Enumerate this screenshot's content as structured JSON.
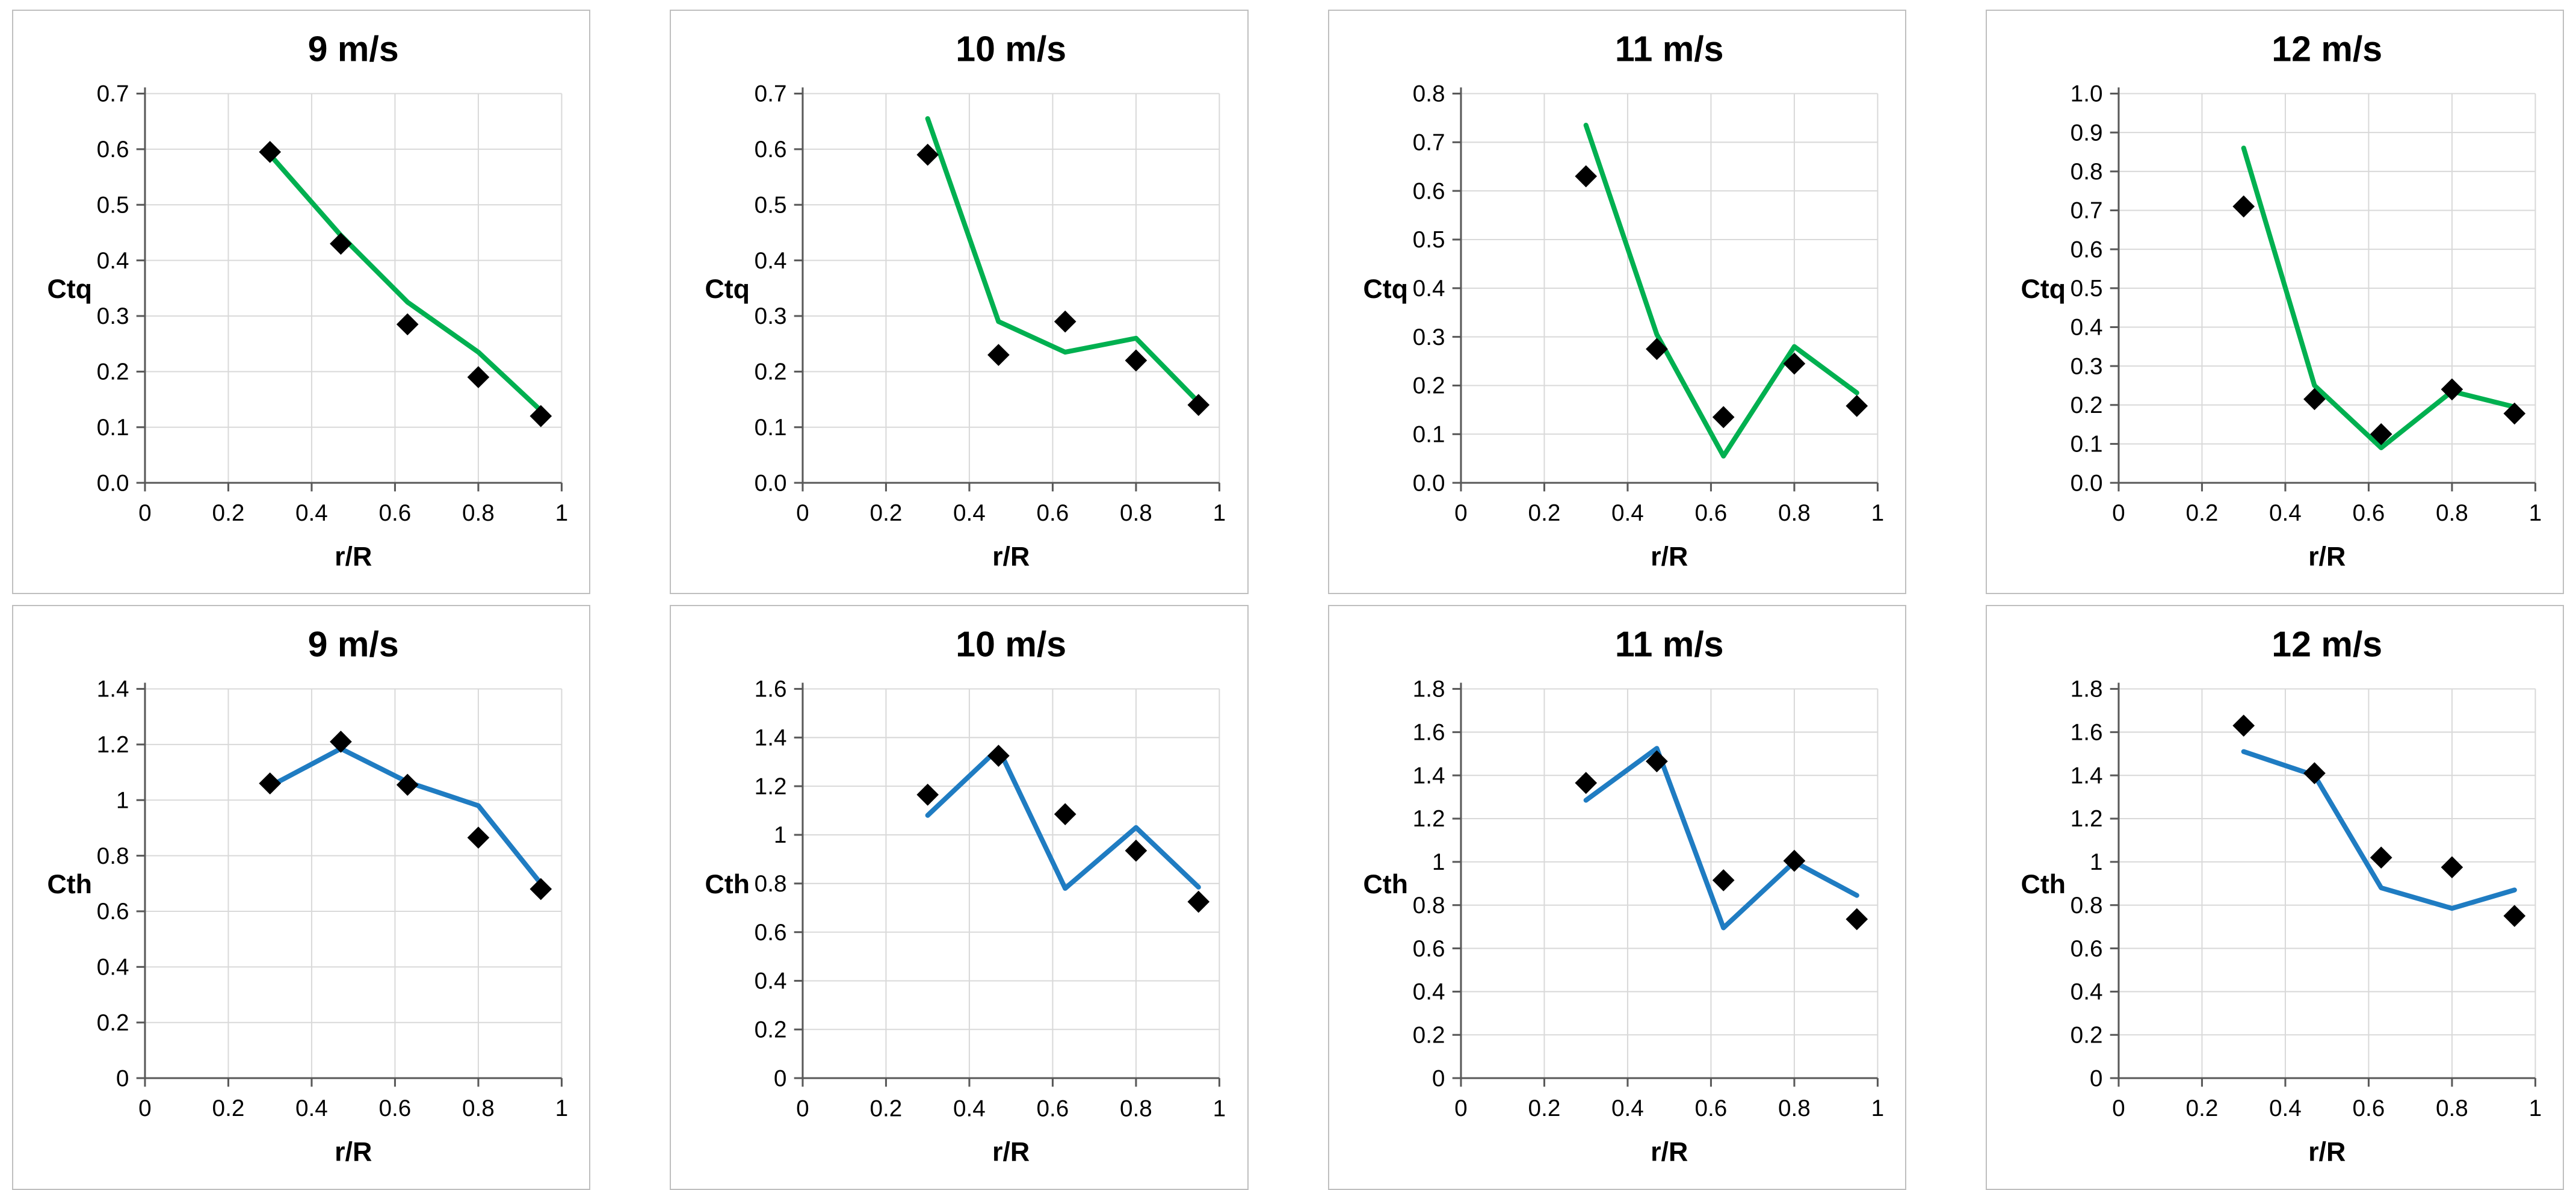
{
  "page": {
    "background": "#FFFFFF",
    "description_colors": {
      "ctq_line": "#00B050",
      "cth_line": "#1F7CC2",
      "marker": "#000000",
      "grid": "#D9D9D9",
      "axis": "#595959",
      "panel_border": "#BFBFBF"
    }
  },
  "chart_data": [
    {
      "type": "line+scatter",
      "title": "9 m/s",
      "ylabel": "Ctq",
      "xlabel": "r/R",
      "xlim": [
        0,
        1
      ],
      "ylim": [
        0,
        0.7
      ],
      "grid": true,
      "x": [
        0.3,
        0.47,
        0.63,
        0.8,
        0.95
      ],
      "markers": {
        "shape": "diamond",
        "color": "#000000",
        "y": [
          0.595,
          0.43,
          0.285,
          0.19,
          0.12
        ]
      },
      "line": {
        "color": "#00B050",
        "y": [
          0.59,
          0.445,
          0.325,
          0.235,
          0.13
        ]
      },
      "xticks": [
        {
          "v": 0,
          "label": "0"
        },
        {
          "v": 0.2,
          "label": "0.2"
        },
        {
          "v": 0.4,
          "label": "0.4"
        },
        {
          "v": 0.6,
          "label": "0.6"
        },
        {
          "v": 0.8,
          "label": "0.8"
        },
        {
          "v": 1,
          "label": "1"
        }
      ],
      "yticks": [
        {
          "v": 0,
          "label": "0.0"
        },
        {
          "v": 0.1,
          "label": "0.1"
        },
        {
          "v": 0.2,
          "label": "0.2"
        },
        {
          "v": 0.3,
          "label": "0.3"
        },
        {
          "v": 0.4,
          "label": "0.4"
        },
        {
          "v": 0.5,
          "label": "0.5"
        },
        {
          "v": 0.6,
          "label": "0.6"
        },
        {
          "v": 0.7,
          "label": "0.7"
        }
      ]
    },
    {
      "type": "line+scatter",
      "title": "10 m/s",
      "ylabel": "Ctq",
      "xlabel": "r/R",
      "xlim": [
        0,
        1
      ],
      "ylim": [
        0,
        0.7
      ],
      "grid": true,
      "x": [
        0.3,
        0.47,
        0.63,
        0.8,
        0.95
      ],
      "markers": {
        "shape": "diamond",
        "color": "#000000",
        "y": [
          0.59,
          0.23,
          0.29,
          0.22,
          0.14
        ]
      },
      "line": {
        "color": "#00B050",
        "y": [
          0.655,
          0.29,
          0.235,
          0.26,
          0.145
        ]
      },
      "xticks": [
        {
          "v": 0,
          "label": "0"
        },
        {
          "v": 0.2,
          "label": "0.2"
        },
        {
          "v": 0.4,
          "label": "0.4"
        },
        {
          "v": 0.6,
          "label": "0.6"
        },
        {
          "v": 0.8,
          "label": "0.8"
        },
        {
          "v": 1,
          "label": "1"
        }
      ],
      "yticks": [
        {
          "v": 0,
          "label": "0.0"
        },
        {
          "v": 0.1,
          "label": "0.1"
        },
        {
          "v": 0.2,
          "label": "0.2"
        },
        {
          "v": 0.3,
          "label": "0.3"
        },
        {
          "v": 0.4,
          "label": "0.4"
        },
        {
          "v": 0.5,
          "label": "0.5"
        },
        {
          "v": 0.6,
          "label": "0.6"
        },
        {
          "v": 0.7,
          "label": "0.7"
        }
      ]
    },
    {
      "type": "line+scatter",
      "title": "11 m/s",
      "ylabel": "Ctq",
      "xlabel": "r/R",
      "xlim": [
        0,
        1
      ],
      "ylim": [
        0,
        0.8
      ],
      "grid": true,
      "x": [
        0.3,
        0.47,
        0.63,
        0.8,
        0.95
      ],
      "markers": {
        "shape": "diamond",
        "color": "#000000",
        "y": [
          0.63,
          0.275,
          0.135,
          0.245,
          0.158
        ]
      },
      "line": {
        "color": "#00B050",
        "y": [
          0.735,
          0.305,
          0.055,
          0.28,
          0.185
        ]
      },
      "xticks": [
        {
          "v": 0,
          "label": "0"
        },
        {
          "v": 0.2,
          "label": "0.2"
        },
        {
          "v": 0.4,
          "label": "0.4"
        },
        {
          "v": 0.6,
          "label": "0.6"
        },
        {
          "v": 0.8,
          "label": "0.8"
        },
        {
          "v": 1,
          "label": "1"
        }
      ],
      "yticks": [
        {
          "v": 0,
          "label": "0.0"
        },
        {
          "v": 0.1,
          "label": "0.1"
        },
        {
          "v": 0.2,
          "label": "0.2"
        },
        {
          "v": 0.3,
          "label": "0.3"
        },
        {
          "v": 0.4,
          "label": "0.4"
        },
        {
          "v": 0.5,
          "label": "0.5"
        },
        {
          "v": 0.6,
          "label": "0.6"
        },
        {
          "v": 0.7,
          "label": "0.7"
        },
        {
          "v": 0.8,
          "label": "0.8"
        }
      ]
    },
    {
      "type": "line+scatter",
      "title": "12 m/s",
      "ylabel": "Ctq",
      "xlabel": "r/R",
      "xlim": [
        0,
        1
      ],
      "ylim": [
        0,
        1.0
      ],
      "grid": true,
      "x": [
        0.3,
        0.47,
        0.63,
        0.8,
        0.95
      ],
      "markers": {
        "shape": "diamond",
        "color": "#000000",
        "y": [
          0.71,
          0.215,
          0.125,
          0.24,
          0.178
        ]
      },
      "line": {
        "color": "#00B050",
        "y": [
          0.86,
          0.25,
          0.09,
          0.235,
          0.195
        ]
      },
      "xticks": [
        {
          "v": 0,
          "label": "0"
        },
        {
          "v": 0.2,
          "label": "0.2"
        },
        {
          "v": 0.4,
          "label": "0.4"
        },
        {
          "v": 0.6,
          "label": "0.6"
        },
        {
          "v": 0.8,
          "label": "0.8"
        },
        {
          "v": 1,
          "label": "1"
        }
      ],
      "yticks": [
        {
          "v": 0,
          "label": "0.0"
        },
        {
          "v": 0.1,
          "label": "0.1"
        },
        {
          "v": 0.2,
          "label": "0.2"
        },
        {
          "v": 0.3,
          "label": "0.3"
        },
        {
          "v": 0.4,
          "label": "0.4"
        },
        {
          "v": 0.5,
          "label": "0.5"
        },
        {
          "v": 0.6,
          "label": "0.6"
        },
        {
          "v": 0.7,
          "label": "0.7"
        },
        {
          "v": 0.8,
          "label": "0.8"
        },
        {
          "v": 0.9,
          "label": "0.9"
        },
        {
          "v": 1,
          "label": "1.0"
        }
      ]
    },
    {
      "type": "line+scatter",
      "title": "9 m/s",
      "ylabel": "Cth",
      "xlabel": "r/R",
      "xlim": [
        0,
        1
      ],
      "ylim": [
        0,
        1.4
      ],
      "grid": true,
      "x": [
        0.3,
        0.47,
        0.63,
        0.8,
        0.95
      ],
      "markers": {
        "shape": "diamond",
        "color": "#000000",
        "y": [
          1.06,
          1.21,
          1.055,
          0.865,
          0.68
        ]
      },
      "line": {
        "color": "#1F7CC2",
        "y": [
          1.05,
          1.185,
          1.065,
          0.98,
          0.7
        ]
      },
      "xticks": [
        {
          "v": 0,
          "label": "0"
        },
        {
          "v": 0.2,
          "label": "0.2"
        },
        {
          "v": 0.4,
          "label": "0.4"
        },
        {
          "v": 0.6,
          "label": "0.6"
        },
        {
          "v": 0.8,
          "label": "0.8"
        },
        {
          "v": 1,
          "label": "1"
        }
      ],
      "yticks": [
        {
          "v": 0,
          "label": "0"
        },
        {
          "v": 0.2,
          "label": "0.2"
        },
        {
          "v": 0.4,
          "label": "0.4"
        },
        {
          "v": 0.6,
          "label": "0.6"
        },
        {
          "v": 0.8,
          "label": "0.8"
        },
        {
          "v": 1,
          "label": "1"
        },
        {
          "v": 1.2,
          "label": "1.2"
        },
        {
          "v": 1.4,
          "label": "1.4"
        }
      ]
    },
    {
      "type": "line+scatter",
      "title": "10 m/s",
      "ylabel": "Cth",
      "xlabel": "r/R",
      "xlim": [
        0,
        1
      ],
      "ylim": [
        0,
        1.6
      ],
      "grid": true,
      "x": [
        0.3,
        0.47,
        0.63,
        0.8,
        0.95
      ],
      "markers": {
        "shape": "diamond",
        "color": "#000000",
        "y": [
          1.165,
          1.325,
          1.085,
          0.935,
          0.725
        ]
      },
      "line": {
        "color": "#1F7CC2",
        "y": [
          1.08,
          1.355,
          0.78,
          1.03,
          0.785
        ]
      },
      "xticks": [
        {
          "v": 0,
          "label": "0"
        },
        {
          "v": 0.2,
          "label": "0.2"
        },
        {
          "v": 0.4,
          "label": "0.4"
        },
        {
          "v": 0.6,
          "label": "0.6"
        },
        {
          "v": 0.8,
          "label": "0.8"
        },
        {
          "v": 1,
          "label": "1"
        }
      ],
      "yticks": [
        {
          "v": 0,
          "label": "0"
        },
        {
          "v": 0.2,
          "label": "0.2"
        },
        {
          "v": 0.4,
          "label": "0.4"
        },
        {
          "v": 0.6,
          "label": "0.6"
        },
        {
          "v": 0.8,
          "label": "0.8"
        },
        {
          "v": 1,
          "label": "1"
        },
        {
          "v": 1.2,
          "label": "1.2"
        },
        {
          "v": 1.4,
          "label": "1.4"
        },
        {
          "v": 1.6,
          "label": "1.6"
        }
      ]
    },
    {
      "type": "line+scatter",
      "title": "11 m/s",
      "ylabel": "Cth",
      "xlabel": "r/R",
      "xlim": [
        0,
        1
      ],
      "ylim": [
        0,
        1.8
      ],
      "grid": true,
      "x": [
        0.3,
        0.47,
        0.63,
        0.8,
        0.95
      ],
      "markers": {
        "shape": "diamond",
        "color": "#000000",
        "y": [
          1.365,
          1.465,
          0.915,
          1.005,
          0.735
        ]
      },
      "line": {
        "color": "#1F7CC2",
        "y": [
          1.285,
          1.525,
          0.695,
          1.0,
          0.845
        ]
      },
      "xticks": [
        {
          "v": 0,
          "label": "0"
        },
        {
          "v": 0.2,
          "label": "0.2"
        },
        {
          "v": 0.4,
          "label": "0.4"
        },
        {
          "v": 0.6,
          "label": "0.6"
        },
        {
          "v": 0.8,
          "label": "0.8"
        },
        {
          "v": 1,
          "label": "1"
        }
      ],
      "yticks": [
        {
          "v": 0,
          "label": "0"
        },
        {
          "v": 0.2,
          "label": "0.2"
        },
        {
          "v": 0.4,
          "label": "0.4"
        },
        {
          "v": 0.6,
          "label": "0.6"
        },
        {
          "v": 0.8,
          "label": "0.8"
        },
        {
          "v": 1,
          "label": "1"
        },
        {
          "v": 1.2,
          "label": "1.2"
        },
        {
          "v": 1.4,
          "label": "1.4"
        },
        {
          "v": 1.6,
          "label": "1.6"
        },
        {
          "v": 1.8,
          "label": "1.8"
        }
      ]
    },
    {
      "type": "line+scatter",
      "title": "12 m/s",
      "ylabel": "Cth",
      "xlabel": "r/R",
      "xlim": [
        0,
        1
      ],
      "ylim": [
        0,
        1.8
      ],
      "grid": true,
      "x": [
        0.3,
        0.47,
        0.63,
        0.8,
        0.95
      ],
      "markers": {
        "shape": "diamond",
        "color": "#000000",
        "y": [
          1.63,
          1.41,
          1.02,
          0.975,
          0.75
        ]
      },
      "line": {
        "color": "#1F7CC2",
        "y": [
          1.51,
          1.4,
          0.88,
          0.785,
          0.87
        ]
      },
      "xticks": [
        {
          "v": 0,
          "label": "0"
        },
        {
          "v": 0.2,
          "label": "0.2"
        },
        {
          "v": 0.4,
          "label": "0.4"
        },
        {
          "v": 0.6,
          "label": "0.6"
        },
        {
          "v": 0.8,
          "label": "0.8"
        },
        {
          "v": 1,
          "label": "1"
        }
      ],
      "yticks": [
        {
          "v": 0,
          "label": "0"
        },
        {
          "v": 0.2,
          "label": "0.2"
        },
        {
          "v": 0.4,
          "label": "0.4"
        },
        {
          "v": 0.6,
          "label": "0.6"
        },
        {
          "v": 0.8,
          "label": "0.8"
        },
        {
          "v": 1,
          "label": "1"
        },
        {
          "v": 1.2,
          "label": "1.2"
        },
        {
          "v": 1.4,
          "label": "1.4"
        },
        {
          "v": 1.6,
          "label": "1.6"
        },
        {
          "v": 1.8,
          "label": "1.8"
        }
      ]
    }
  ]
}
